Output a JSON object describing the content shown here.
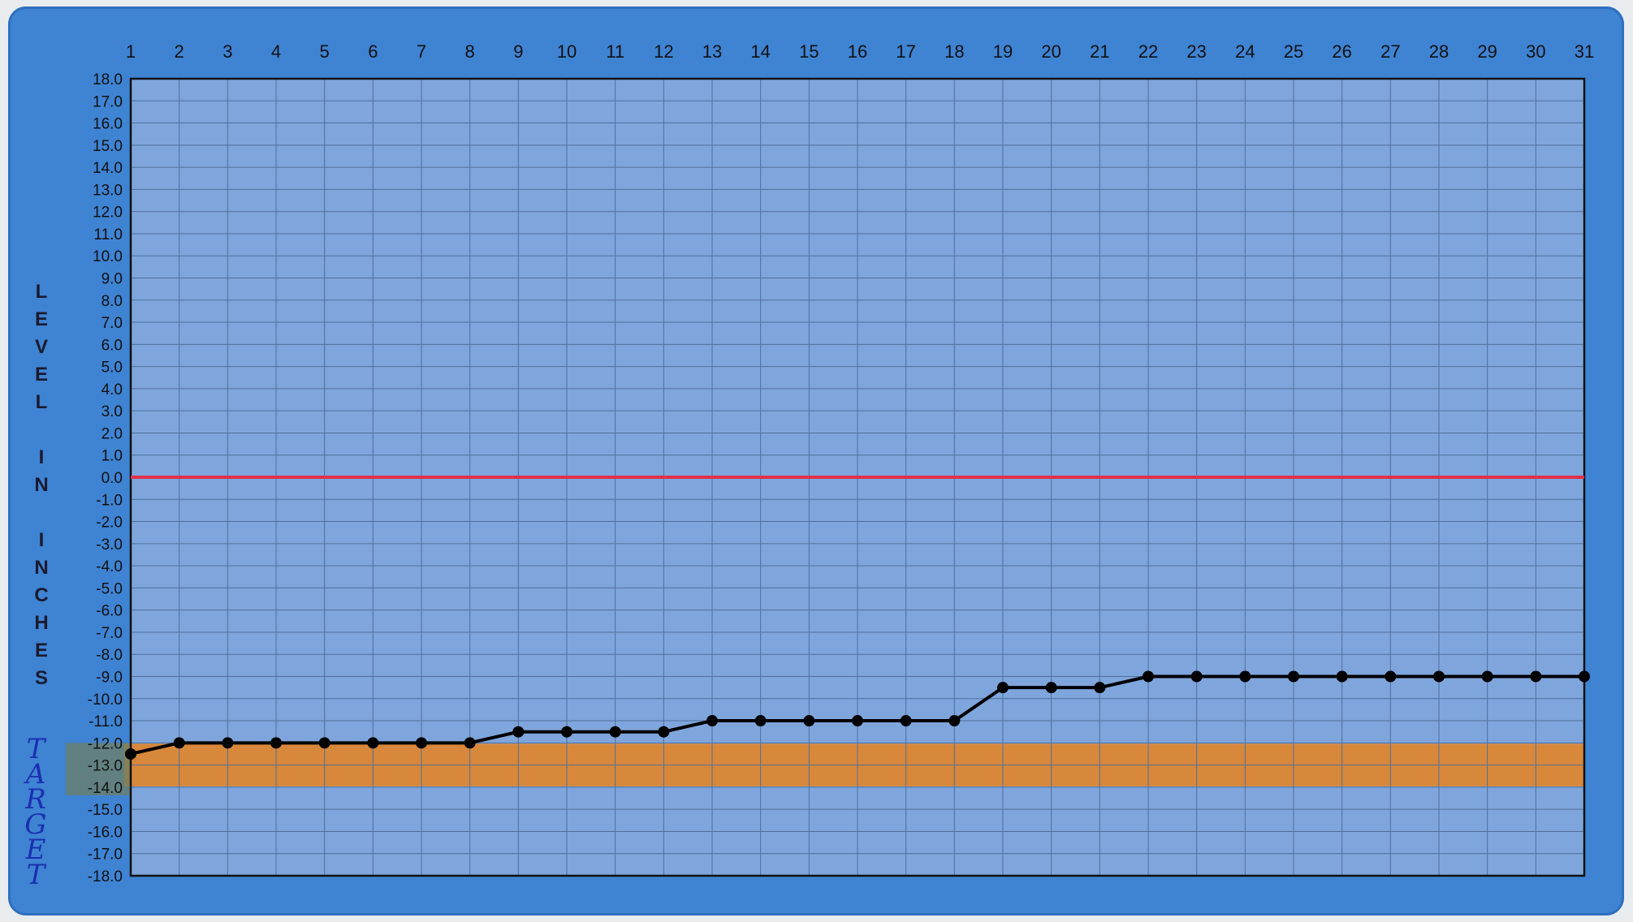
{
  "chart_data": {
    "type": "line",
    "title": "",
    "xlabel": "",
    "ylabel": "LEVEL IN INCHES",
    "x": [
      1,
      2,
      3,
      4,
      5,
      6,
      7,
      8,
      9,
      10,
      11,
      12,
      13,
      14,
      15,
      16,
      17,
      18,
      19,
      20,
      21,
      22,
      23,
      24,
      25,
      26,
      27,
      28,
      29,
      30,
      31
    ],
    "xticks": [
      "1",
      "2",
      "3",
      "4",
      "5",
      "6",
      "7",
      "8",
      "9",
      "10",
      "11",
      "12",
      "13",
      "14",
      "15",
      "16",
      "17",
      "18",
      "19",
      "20",
      "21",
      "22",
      "23",
      "24",
      "25",
      "26",
      "27",
      "28",
      "29",
      "30",
      "31"
    ],
    "ylim": [
      -18,
      18
    ],
    "yticks": [
      "18.0",
      "17.0",
      "16.0",
      "15.0",
      "14.0",
      "13.0",
      "12.0",
      "11.0",
      "10.0",
      "9.0",
      "8.0",
      "7.0",
      "6.0",
      "5.0",
      "4.0",
      "3.0",
      "2.0",
      "1.0",
      "0.0",
      "-1.0",
      "-2.0",
      "-3.0",
      "-4.0",
      "-5.0",
      "-6.0",
      "-7.0",
      "-8.0",
      "-9.0",
      "-10.0",
      "-11.0",
      "-12.0",
      "-13.0",
      "-14.0",
      "-15.0",
      "-16.0",
      "-17.0",
      "-18.0"
    ],
    "grid": true,
    "series": [
      {
        "values": [
          -12.5,
          -12,
          -12,
          -12,
          -12,
          -12,
          -12,
          -12,
          -11.5,
          -11.5,
          -11.5,
          -11.5,
          -11,
          -11,
          -11,
          -11,
          -11,
          -11,
          -9.5,
          -9.5,
          -9.5,
          -9,
          -9,
          -9,
          -9,
          -9,
          -9,
          -9,
          -9,
          -9,
          -9
        ],
        "color": "#000000"
      }
    ],
    "reference_line": {
      "y": 0,
      "color": "#e0304a"
    },
    "target_band": {
      "y_range": [
        -14,
        -12
      ],
      "label": "TARGET",
      "color": "#e8821e"
    }
  },
  "colors": {
    "frame": "#3f83d3",
    "plot_background": "#7fa6dc",
    "grid": "#4f6f9c"
  }
}
